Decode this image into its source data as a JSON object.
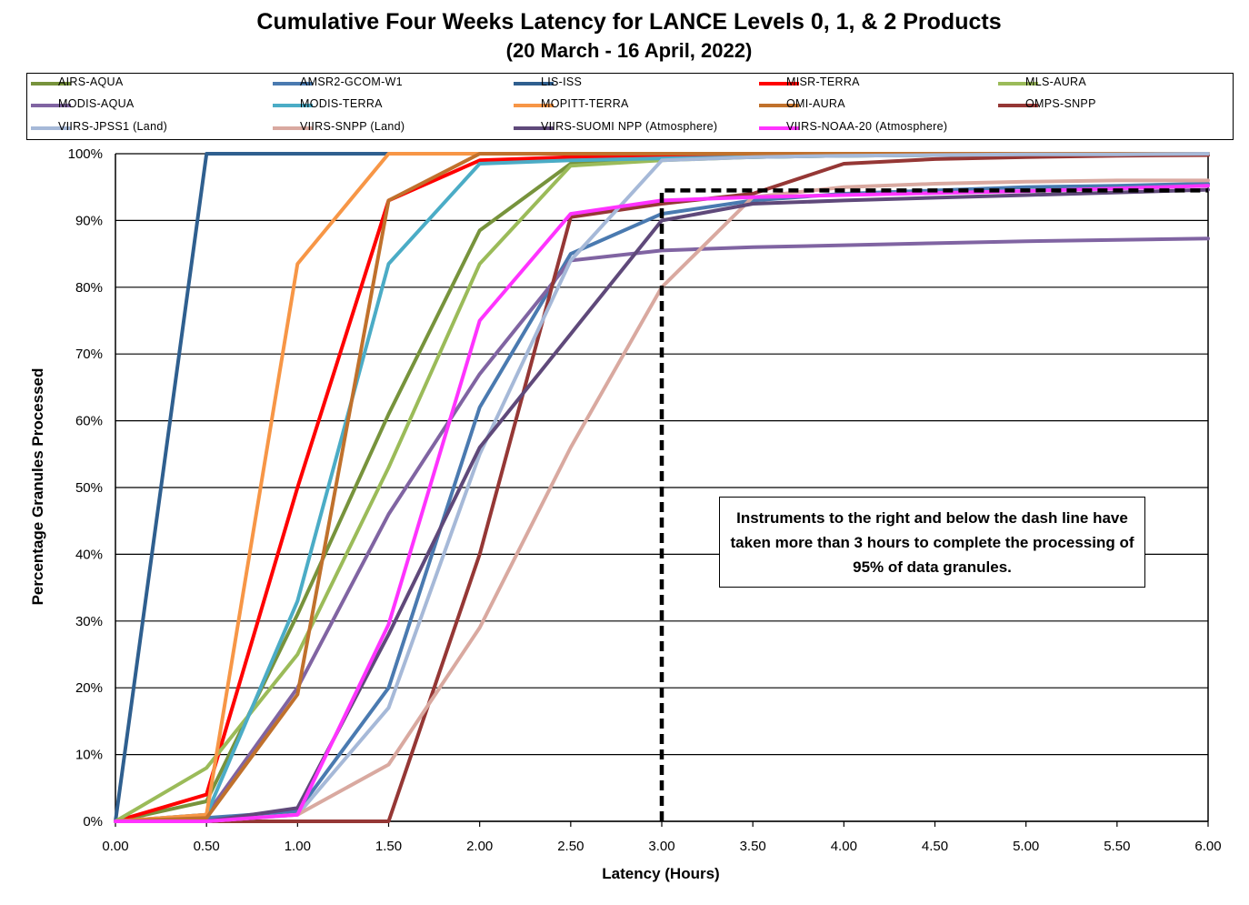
{
  "chart_data": {
    "type": "line",
    "title": "Cumulative Four Weeks Latency  for LANCE Levels 0, 1, & 2 Products",
    "subtitle": "(20  March   -  16  April,  2022)",
    "xlabel": "Latency (Hours)",
    "ylabel": "Percentage Granules Processed",
    "xlim": [
      0,
      6
    ],
    "ylim": [
      0,
      100
    ],
    "x_ticks": [
      "0.00",
      "0.50",
      "1.00",
      "1.50",
      "2.00",
      "2.50",
      "3.00",
      "3.50",
      "4.00",
      "4.50",
      "5.00",
      "5.50",
      "6.00"
    ],
    "y_ticks": [
      "0%",
      "10%",
      "20%",
      "30%",
      "40%",
      "50%",
      "60%",
      "70%",
      "80%",
      "90%",
      "100%"
    ],
    "grid": "horizontal",
    "legend_position": "top",
    "x": [
      0,
      0.5,
      1.0,
      1.5,
      2.0,
      2.5,
      3.0,
      3.5,
      4.0,
      4.5,
      5.0,
      5.5,
      6.0
    ],
    "series": [
      {
        "name": "AIRS-AQUA",
        "color": "#77933c",
        "values": [
          0,
          3,
          31,
          61,
          88.5,
          98.5,
          99.2,
          99.5,
          99.7,
          99.8,
          99.9,
          99.9,
          100
        ]
      },
      {
        "name": "AMSR2-GCOM-W1",
        "color": "#4a7ab0",
        "values": [
          0,
          0.5,
          1.5,
          20,
          62,
          85,
          91,
          93,
          94,
          94.5,
          95,
          95.2,
          95.5
        ]
      },
      {
        "name": "LIS-ISS",
        "color": "#2f5f8f",
        "values": [
          0,
          100,
          100,
          100,
          100,
          100,
          100,
          100,
          100,
          100,
          100,
          100,
          100
        ]
      },
      {
        "name": "MISR-TERRA",
        "color": "#ff0000",
        "values": [
          0,
          4,
          50,
          93,
          99,
          99.5,
          99.7,
          99.8,
          99.9,
          100,
          100,
          100,
          100
        ]
      },
      {
        "name": "MLS-AURA",
        "color": "#9bbb59",
        "values": [
          0,
          8,
          25,
          53,
          83.5,
          98.2,
          99,
          99.5,
          99.7,
          99.8,
          99.9,
          99.9,
          100
        ]
      },
      {
        "name": "MODIS-AQUA",
        "color": "#8064a2",
        "values": [
          0,
          1,
          20,
          46,
          67,
          84,
          85.5,
          86,
          86.3,
          86.6,
          86.9,
          87.1,
          87.3
        ]
      },
      {
        "name": "MODIS-TERRA",
        "color": "#4bacc6",
        "values": [
          0,
          1,
          33,
          83.5,
          98.5,
          99,
          99.3,
          99.5,
          99.7,
          99.8,
          99.9,
          99.9,
          100
        ]
      },
      {
        "name": "MOPITT-TERRA",
        "color": "#f79646",
        "values": [
          0,
          1,
          83.5,
          100,
          100,
          100,
          100,
          100,
          100,
          100,
          100,
          100,
          100
        ]
      },
      {
        "name": "OMI-AURA",
        "color": "#c0712c",
        "values": [
          0,
          0.5,
          19,
          93,
          100,
          100,
          100,
          100,
          100,
          100,
          100,
          100,
          100
        ]
      },
      {
        "name": "OMPS-SNPP",
        "color": "#953735",
        "values": [
          0,
          0,
          0,
          0,
          40,
          90.5,
          92.5,
          94,
          98.5,
          99.2,
          99.5,
          99.7,
          99.8
        ]
      },
      {
        "name": "VIIRS-JPSS1 (Land)",
        "color": "#a6b9d8",
        "values": [
          0,
          0,
          1,
          17,
          55,
          84,
          99,
          99.5,
          99.7,
          99.8,
          99.9,
          99.9,
          100
        ]
      },
      {
        "name": "VIIRS-SNPP (Land)",
        "color": "#d9a9a0",
        "values": [
          0,
          0,
          1,
          8.5,
          29,
          56,
          80,
          93.5,
          95,
          95.5,
          95.8,
          96,
          96
        ]
      },
      {
        "name": "VIIRS-SUOMI NPP (Atmosphere)",
        "color": "#5f497a",
        "values": [
          0,
          0,
          2,
          28,
          56,
          73,
          90,
          92.5,
          93,
          93.4,
          93.8,
          94.2,
          94.6
        ]
      },
      {
        "name": "VIIRS-NOAA-20 (Atmosphere)",
        "color": "#ff33ff",
        "values": [
          0,
          0,
          1,
          29.5,
          75,
          91,
          93,
          93.5,
          93.8,
          94.1,
          94.4,
          94.8,
          95.2
        ]
      }
    ],
    "threshold_line": {
      "x": 3.0,
      "y": 94.5,
      "style": "dashed",
      "color": "#000000"
    },
    "annotation": "Instruments to the right and below the dash line have taken more than 3 hours to complete the processing of 95% of data granules."
  }
}
